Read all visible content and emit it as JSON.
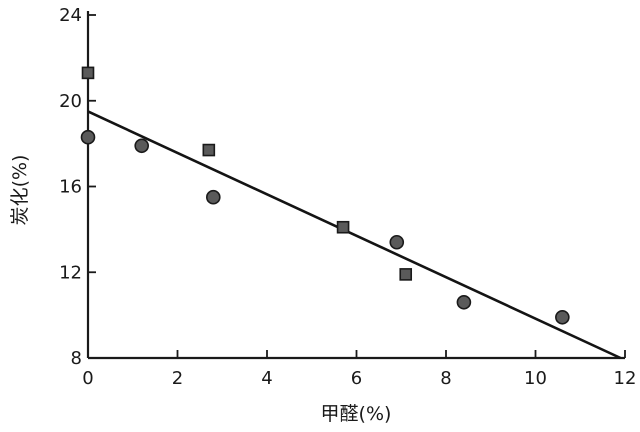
{
  "chart_data": {
    "type": "scatter",
    "title": "",
    "xlabel": "甲醛(%)",
    "ylabel": "炭化(%)",
    "xlim": [
      0,
      12
    ],
    "ylim": [
      8,
      24
    ],
    "x_ticks": [
      0,
      2,
      4,
      6,
      8,
      10,
      12
    ],
    "y_ticks": [
      8,
      12,
      16,
      20,
      24
    ],
    "grid": false,
    "series": [
      {
        "marker": "circle",
        "points": [
          {
            "x": 0.0,
            "y": 18.3
          },
          {
            "x": 1.2,
            "y": 17.9
          },
          {
            "x": 2.8,
            "y": 15.5
          },
          {
            "x": 6.9,
            "y": 13.4
          },
          {
            "x": 8.4,
            "y": 10.6
          },
          {
            "x": 10.6,
            "y": 9.9
          }
        ]
      },
      {
        "marker": "square",
        "points": [
          {
            "x": 0.0,
            "y": 21.3
          },
          {
            "x": 2.7,
            "y": 17.7
          },
          {
            "x": 5.7,
            "y": 14.1
          },
          {
            "x": 7.1,
            "y": 11.9
          }
        ]
      }
    ],
    "fit_line": {
      "x": [
        0,
        11.9
      ],
      "y": [
        19.5,
        8.0
      ]
    },
    "colors": {
      "ink": "#1a1a1a",
      "marker_fill": "#5a5a5a",
      "marker_edge": "#1a1a1a"
    }
  }
}
